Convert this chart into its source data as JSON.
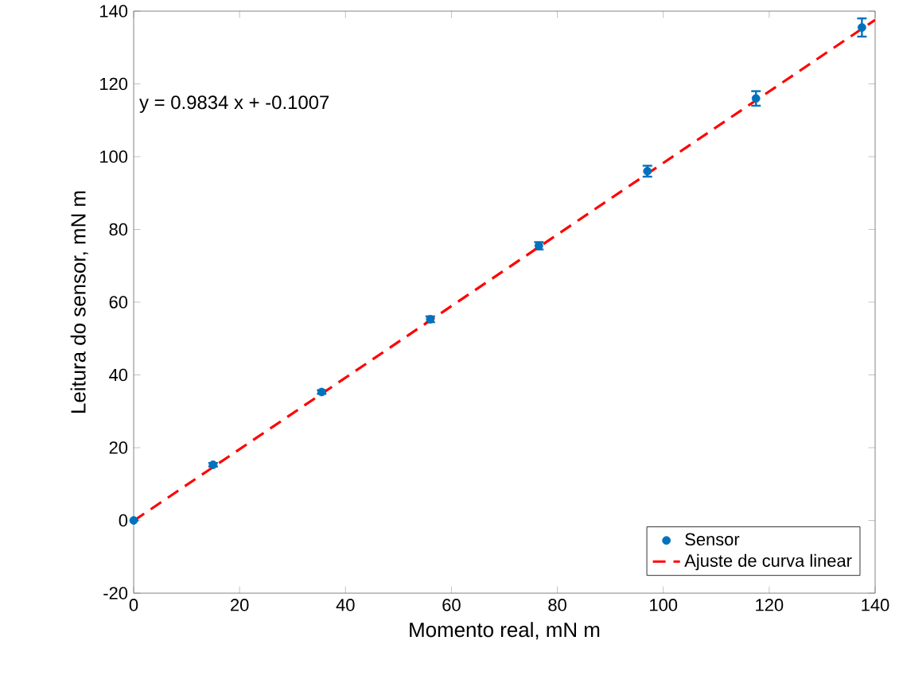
{
  "chart_data": {
    "type": "scatter",
    "xlabel": "Momento real, mN m",
    "ylabel": "Leitura do sensor, mN m",
    "xlim": [
      0,
      140
    ],
    "ylim": [
      -20,
      140
    ],
    "xticks": [
      0,
      20,
      40,
      60,
      80,
      100,
      120,
      140
    ],
    "yticks": [
      -20,
      0,
      20,
      40,
      60,
      80,
      100,
      120,
      140
    ],
    "grid": false,
    "legend": "bottom right",
    "annotations": [
      "y = 0.9834 x + -0.1007"
    ],
    "series": [
      {
        "name": "Sensor",
        "color": "#0072bd",
        "marker": "circle",
        "x": [
          0,
          15,
          35.5,
          56,
          76.5,
          97,
          117.5,
          137.5
        ],
        "values": [
          0,
          15.3,
          35.3,
          55.3,
          75.5,
          96,
          116,
          135.5
        ],
        "errors": [
          0,
          0.5,
          0.5,
          0.8,
          1,
          1.5,
          2,
          2.5
        ]
      },
      {
        "name": "Ajuste de curva linear",
        "type": "line",
        "color": "#ff0000",
        "line_style": "dashed",
        "marker": "none",
        "x": [
          0,
          140
        ],
        "values": [
          -0.1,
          137.6
        ]
      }
    ]
  }
}
